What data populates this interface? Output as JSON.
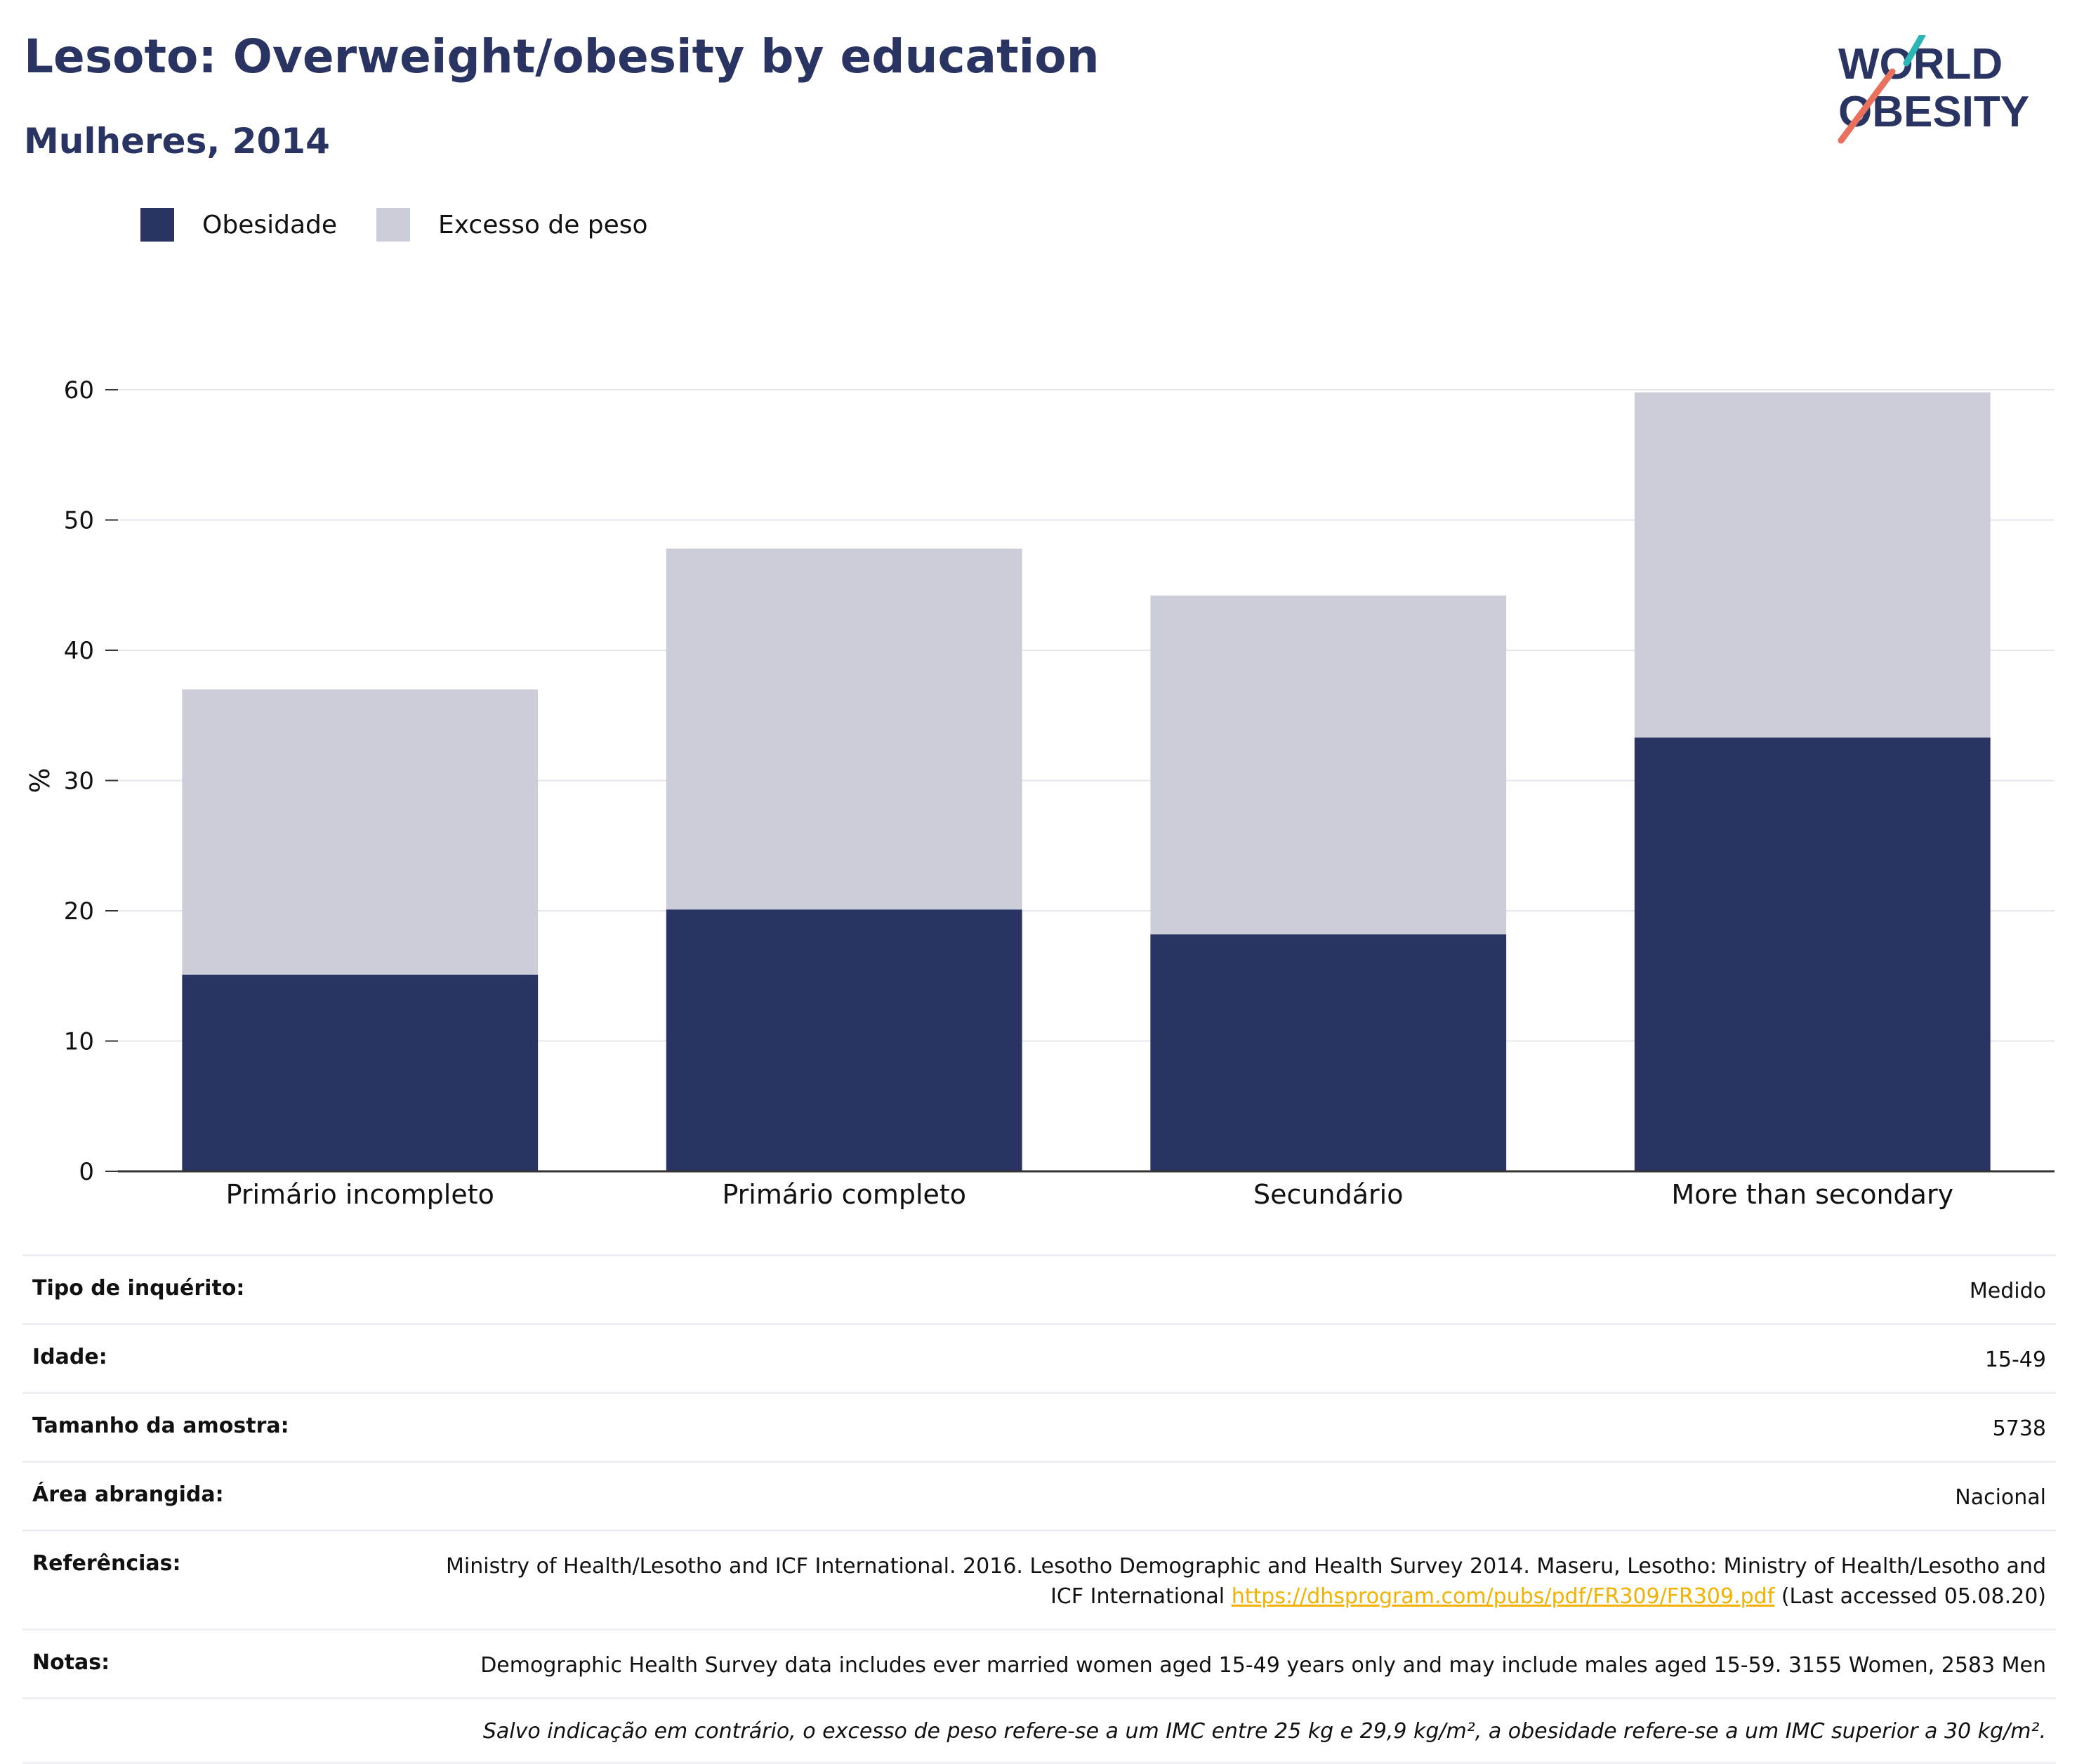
{
  "header": {
    "title": "Lesoto: Overweight/obesity by education",
    "subtitle": "Mulheres, 2014"
  },
  "logo": {
    "line1": "WORLD",
    "line2": "OBESITY"
  },
  "legend": {
    "items": [
      {
        "label": "Obesidade",
        "color": "#293462"
      },
      {
        "label": "Excesso de peso",
        "color": "#cbcdd8"
      }
    ]
  },
  "chart_data": {
    "type": "bar",
    "stacked": true,
    "categories": [
      "Primário incompleto",
      "Primário completo",
      "Secundário",
      "More than secondary"
    ],
    "series": [
      {
        "name": "Obesidade",
        "color": "#293462",
        "values": [
          15.1,
          20.1,
          18.2,
          33.3
        ]
      },
      {
        "name": "Excesso de peso",
        "color": "#cbcdd8",
        "values": [
          21.9,
          27.7,
          26.0,
          26.5
        ]
      }
    ],
    "ylabel": "%",
    "ylim": [
      0,
      60
    ],
    "yticks": [
      0,
      10,
      20,
      30,
      40,
      50,
      60
    ],
    "grid": true,
    "legend": "top-left"
  },
  "info": {
    "survey_type": {
      "label": "Tipo de inquérito:",
      "value": "Medido"
    },
    "age": {
      "label": "Idade:",
      "value": "15-49"
    },
    "sample_size": {
      "label": "Tamanho da amostra:",
      "value": "5738"
    },
    "area": {
      "label": "Área abrangida:",
      "value": "Nacional"
    },
    "references": {
      "label": "Referências:",
      "text_before": "Ministry of Health/Lesotho and ICF International. 2016. Lesotho Demographic and Health Survey 2014. Maseru, Lesotho: Ministry of Health/Lesotho and ICF International",
      "link": "https://dhsprogram.com/pubs/pdf/FR309/FR309.pdf",
      "text_after": "(Last accessed 05.08.20)"
    },
    "notes": {
      "label": "Notas:",
      "value": "Demographic Health Survey data includes ever married women aged 15-49 years only and may include males aged 15-59. 3155 Women, 2583 Men"
    },
    "footnote": "Salvo indicação em contrário, o excesso de peso refere-se a um IMC entre 25 kg e 29,9 kg/m², a obesidade refere-se a um IMC superior a 30 kg/m²."
  }
}
